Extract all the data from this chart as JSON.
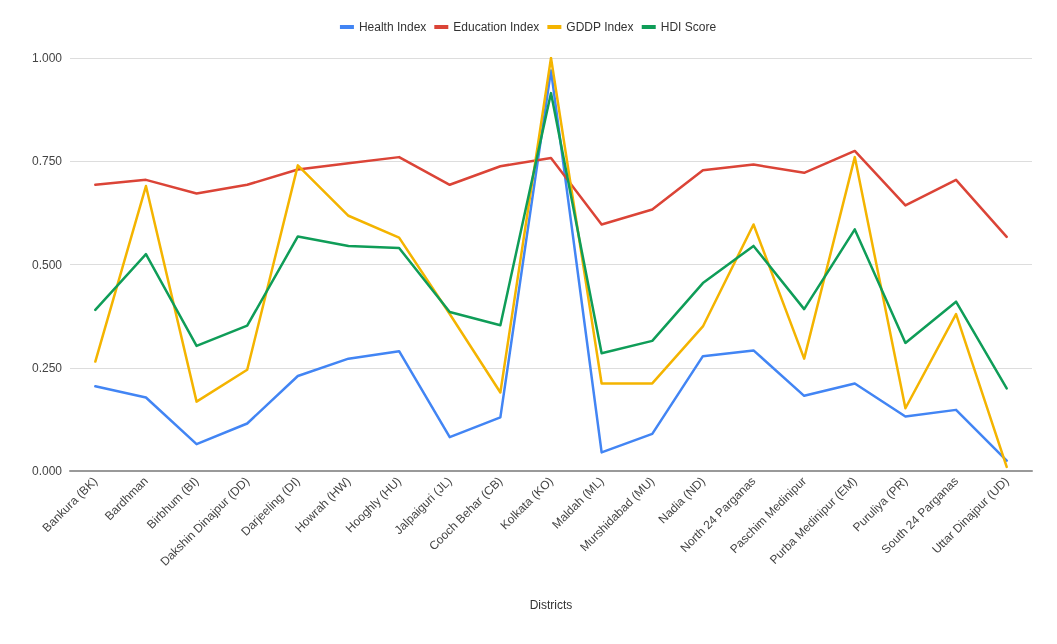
{
  "chart_data": {
    "type": "line",
    "xlabel": "Districts",
    "categories": [
      "Bankura (BK)",
      "Bardhman",
      "Birbhum (BI)",
      "Dakshin Dinajpur (DD)",
      "Darjeeling (DI)",
      "Howrah (HW)",
      "Hooghly (HU)",
      "Jalpaiguri (JL)",
      "Cooch Behar (CB)",
      "Kolkata (KO)",
      "Maldah (ML)",
      "Murshidabad (MU)",
      "Nadia (ND)",
      "North 24 Parganas",
      "Paschim Medinipur",
      "Purba Medinipur (EM)",
      "Puruliya (PR)",
      "South 24 Parganas",
      "Uttar Dinajpur (UD)"
    ],
    "series": [
      {
        "name": "Health Index",
        "color": "#4285f4",
        "values": [
          0.205,
          0.178,
          0.065,
          0.115,
          0.23,
          0.272,
          0.29,
          0.082,
          0.13,
          0.97,
          0.045,
          0.09,
          0.278,
          0.292,
          0.182,
          0.212,
          0.132,
          0.148,
          0.025
        ]
      },
      {
        "name": "Education Index",
        "color": "#db4437",
        "values": [
          0.693,
          0.705,
          0.672,
          0.693,
          0.73,
          0.745,
          0.76,
          0.693,
          0.738,
          0.758,
          0.597,
          0.633,
          0.728,
          0.742,
          0.722,
          0.775,
          0.643,
          0.705,
          0.567
        ]
      },
      {
        "name": "GDDP Index",
        "color": "#f4b400",
        "values": [
          0.265,
          0.69,
          0.168,
          0.245,
          0.74,
          0.618,
          0.565,
          0.38,
          0.19,
          1.0,
          0.212,
          0.212,
          0.35,
          0.597,
          0.272,
          0.76,
          0.152,
          0.38,
          0.01
        ]
      },
      {
        "name": "HDI Score",
        "color": "#0f9d58",
        "values": [
          0.39,
          0.525,
          0.303,
          0.352,
          0.568,
          0.545,
          0.54,
          0.385,
          0.353,
          0.915,
          0.285,
          0.315,
          0.455,
          0.545,
          0.392,
          0.585,
          0.31,
          0.41,
          0.2
        ]
      }
    ],
    "ylim": [
      0,
      1
    ],
    "yticks": [
      {
        "value": 0,
        "label": "0.000"
      },
      {
        "value": 0.25,
        "label": "0.250"
      },
      {
        "value": 0.5,
        "label": "0.500"
      },
      {
        "value": 0.75,
        "label": "0.750"
      },
      {
        "value": 1,
        "label": "1.000"
      }
    ],
    "grid": "y",
    "legend": "top",
    "marker": "none",
    "line_style": "solid"
  }
}
